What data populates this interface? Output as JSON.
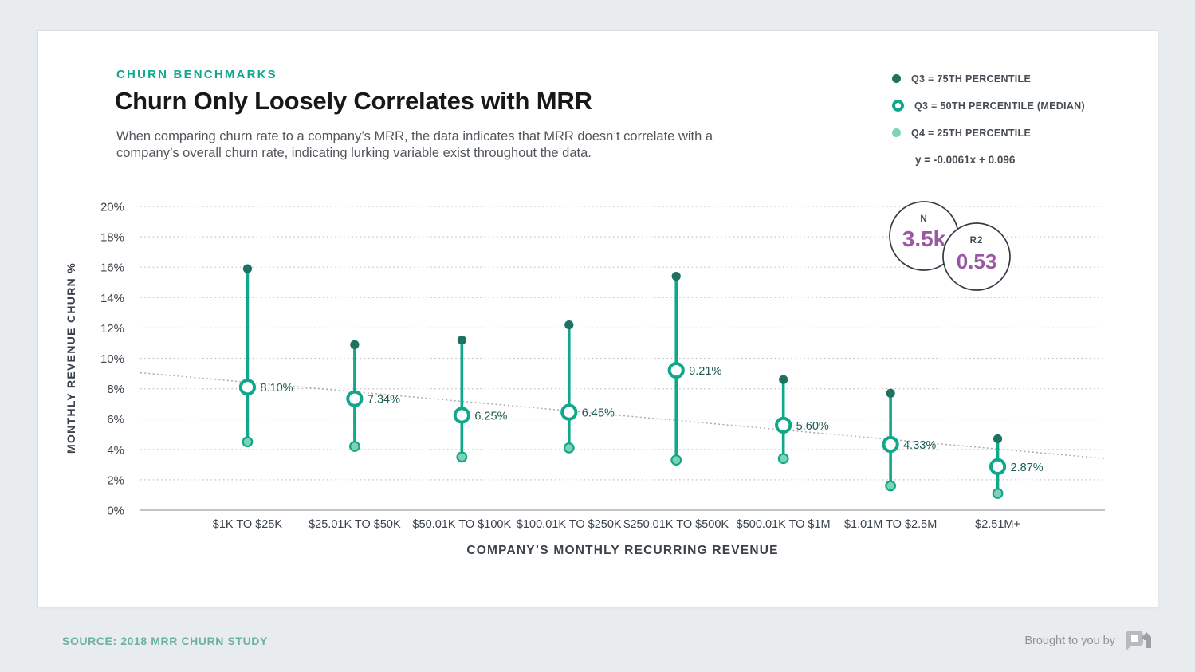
{
  "colors": {
    "accent_teal": "#10a78b",
    "q3_dark_dot": "#1d7261",
    "q1_light_dot": "#7fd3b3",
    "median_ring": "#10a78b",
    "stat_purple": "#9a57a3",
    "grid_dotted": "#c3c6c9",
    "axis_line": "#9aa0a6",
    "trend_line": "#a9adb1",
    "axis_text": "#3a424b",
    "value_label_text": "#1d5b52",
    "circle_border": "#333b45",
    "eyebrow_teal": "#10a78b",
    "source_teal": "#68b1a3"
  },
  "header": {
    "eyebrow": "CHURN BENCHMARKS",
    "title": "Churn Only Loosely Correlates with MRR",
    "subtitle": "When comparing churn rate to a company’s MRR, the data indicates that MRR doesn’t correlate with a company’s overall churn rate, indicating lurking variable exist throughout the data."
  },
  "legend": {
    "items": [
      {
        "label": "Q3 = 75TH PERCENTILE",
        "marker": "filled-dark-dot"
      },
      {
        "label": "Q3 = 50TH PERCENTILE (MEDIAN)",
        "marker": "teal-ring-dot"
      },
      {
        "label": "Q4 = 25TH PERCENTILE",
        "marker": "filled-light-dot"
      }
    ],
    "equation": "y = -0.0061x + 0.096"
  },
  "stats": {
    "n": {
      "label": "N",
      "value": "3.5k"
    },
    "r2": {
      "label": "R2",
      "value": "0.53"
    }
  },
  "chart_data": {
    "type": "scatter",
    "variant": "vertical-range-dumbbell",
    "title": "Churn Only Loosely Correlates with MRR",
    "xlabel": "COMPANY’S MONTHLY RECURRING REVENUE",
    "ylabel": "MONTHLY REVENUE CHURN %",
    "ylim": [
      0,
      20
    ],
    "y_tick_step": 2,
    "y_tick_suffix": "%",
    "grid": "dotted-horizontal",
    "legend_position": "top-right",
    "categories": [
      "$1K TO $25K",
      "$25.01K TO $50K",
      "$50.01K TO $100K",
      "$100.01K TO $250K",
      "$250.01K TO $500K",
      "$500.01K TO $1M",
      "$1.01M TO $2.5M",
      "$2.51M+"
    ],
    "series": [
      {
        "name": "Q3 = 75TH PERCENTILE",
        "values": [
          15.9,
          10.9,
          11.2,
          12.2,
          15.4,
          8.6,
          7.7,
          4.7
        ]
      },
      {
        "name": "Q3 = 50TH PERCENTILE (MEDIAN)",
        "values": [
          8.1,
          7.34,
          6.25,
          6.45,
          9.21,
          5.6,
          4.33,
          2.87
        ]
      },
      {
        "name": "Q4 = 25TH PERCENTILE",
        "values": [
          4.5,
          4.2,
          3.5,
          4.1,
          3.3,
          3.4,
          1.6,
          1.1
        ]
      }
    ],
    "median_labels": [
      "8.10%",
      "7.34%",
      "6.25%",
      "6.45%",
      "9.21%",
      "5.60%",
      "4.33%",
      "2.87%"
    ],
    "trend_line": {
      "equation": "y = -0.0061x + 0.096",
      "left_pct": 9.05,
      "right_pct": 3.4
    },
    "annotations": {
      "n": "3.5k",
      "r2": "0.53"
    }
  },
  "footer": {
    "source": "SOURCE: 2018 MRR CHURN STUDY",
    "brought_by": "Brought to you by",
    "logo": "profitwell-mark"
  }
}
